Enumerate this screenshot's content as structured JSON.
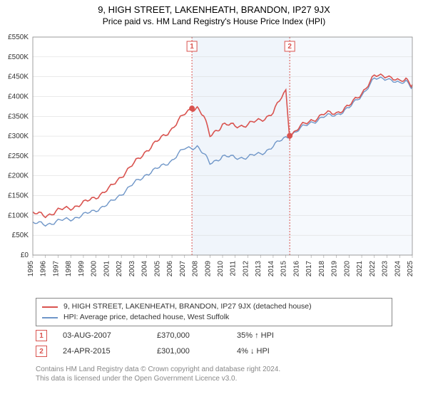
{
  "title_line1": "9, HIGH STREET, LAKENHEATH, BRANDON, IP27 9JX",
  "title_line2": "Price paid vs. HM Land Registry's House Price Index (HPI)",
  "chart": {
    "type": "line",
    "background_color": "#ffffff",
    "grid_color": "#d6d6d6",
    "y": {
      "min": 0,
      "max": 550000,
      "step": 50000,
      "labels": [
        "£0",
        "£50K",
        "£100K",
        "£150K",
        "£200K",
        "£250K",
        "£300K",
        "£350K",
        "£400K",
        "£450K",
        "£500K",
        "£550K"
      ]
    },
    "x": {
      "min": 1995,
      "max": 2025,
      "labels": [
        "1995",
        "1996",
        "1997",
        "1998",
        "1999",
        "2000",
        "2001",
        "2002",
        "2003",
        "2004",
        "2005",
        "2006",
        "2007",
        "2008",
        "2009",
        "2010",
        "2011",
        "2012",
        "2013",
        "2014",
        "2015",
        "2016",
        "2017",
        "2018",
        "2019",
        "2020",
        "2021",
        "2022",
        "2023",
        "2024",
        "2025"
      ]
    },
    "series": [
      {
        "name": "price_projection",
        "color": "#d9534f",
        "legend": "9, HIGH STREET, LAKENHEATH, BRANDON, IP27 9JX (detached house)",
        "points": [
          [
            1995,
            105000
          ],
          [
            1996,
            100000
          ],
          [
            1997,
            112000
          ],
          [
            1998,
            120000
          ],
          [
            1999,
            130000
          ],
          [
            2000,
            148000
          ],
          [
            2001,
            165000
          ],
          [
            2002,
            200000
          ],
          [
            2003,
            230000
          ],
          [
            2004,
            265000
          ],
          [
            2005,
            290000
          ],
          [
            2006,
            320000
          ],
          [
            2007,
            355000
          ],
          [
            2007.58,
            370000
          ],
          [
            2008,
            373000
          ],
          [
            2008.5,
            350000
          ],
          [
            2009,
            300000
          ],
          [
            2009.5,
            315000
          ],
          [
            2010,
            330000
          ],
          [
            2011,
            325000
          ],
          [
            2012,
            330000
          ],
          [
            2013,
            340000
          ],
          [
            2014,
            360000
          ],
          [
            2015,
            415000
          ],
          [
            2015.31,
            301000
          ],
          [
            2016,
            320000
          ],
          [
            2017,
            340000
          ],
          [
            2018,
            355000
          ],
          [
            2019,
            360000
          ],
          [
            2020,
            375000
          ],
          [
            2021,
            410000
          ],
          [
            2022,
            450000
          ],
          [
            2023,
            455000
          ],
          [
            2024,
            435000
          ],
          [
            2024.5,
            445000
          ],
          [
            2025,
            430000
          ]
        ]
      },
      {
        "name": "hpi",
        "color": "#6f96c8",
        "legend": "HPI: Average price, detached house, West Suffolk",
        "points": [
          [
            1995,
            80000
          ],
          [
            1996,
            78000
          ],
          [
            1997,
            85000
          ],
          [
            1998,
            92000
          ],
          [
            1999,
            100000
          ],
          [
            2000,
            115000
          ],
          [
            2001,
            128000
          ],
          [
            2002,
            155000
          ],
          [
            2003,
            180000
          ],
          [
            2004,
            205000
          ],
          [
            2005,
            220000
          ],
          [
            2006,
            240000
          ],
          [
            2007,
            268000
          ],
          [
            2008,
            275000
          ],
          [
            2008.5,
            255000
          ],
          [
            2009,
            230000
          ],
          [
            2010,
            250000
          ],
          [
            2011,
            245000
          ],
          [
            2012,
            248000
          ],
          [
            2013,
            255000
          ],
          [
            2014,
            275000
          ],
          [
            2015,
            297000
          ],
          [
            2016,
            315000
          ],
          [
            2017,
            335000
          ],
          [
            2018,
            348000
          ],
          [
            2019,
            355000
          ],
          [
            2020,
            370000
          ],
          [
            2021,
            405000
          ],
          [
            2022,
            443000
          ],
          [
            2023,
            448000
          ],
          [
            2024,
            430000
          ],
          [
            2024.5,
            440000
          ],
          [
            2025,
            425000
          ]
        ]
      }
    ],
    "sales_markers": [
      {
        "num": "1",
        "year": 2007.58,
        "price": 370000
      },
      {
        "num": "2",
        "year": 2015.31,
        "price": 301000
      }
    ]
  },
  "sales": [
    {
      "num": "1",
      "date": "03-AUG-2007",
      "price": "£370,000",
      "hpi": "35% ↑ HPI"
    },
    {
      "num": "2",
      "date": "24-APR-2015",
      "price": "£301,000",
      "hpi": "4% ↓ HPI"
    }
  ],
  "footer_line1": "Contains HM Land Registry data © Crown copyright and database right 2024.",
  "footer_line2": "This data is licensed under the Open Government Licence v3.0."
}
